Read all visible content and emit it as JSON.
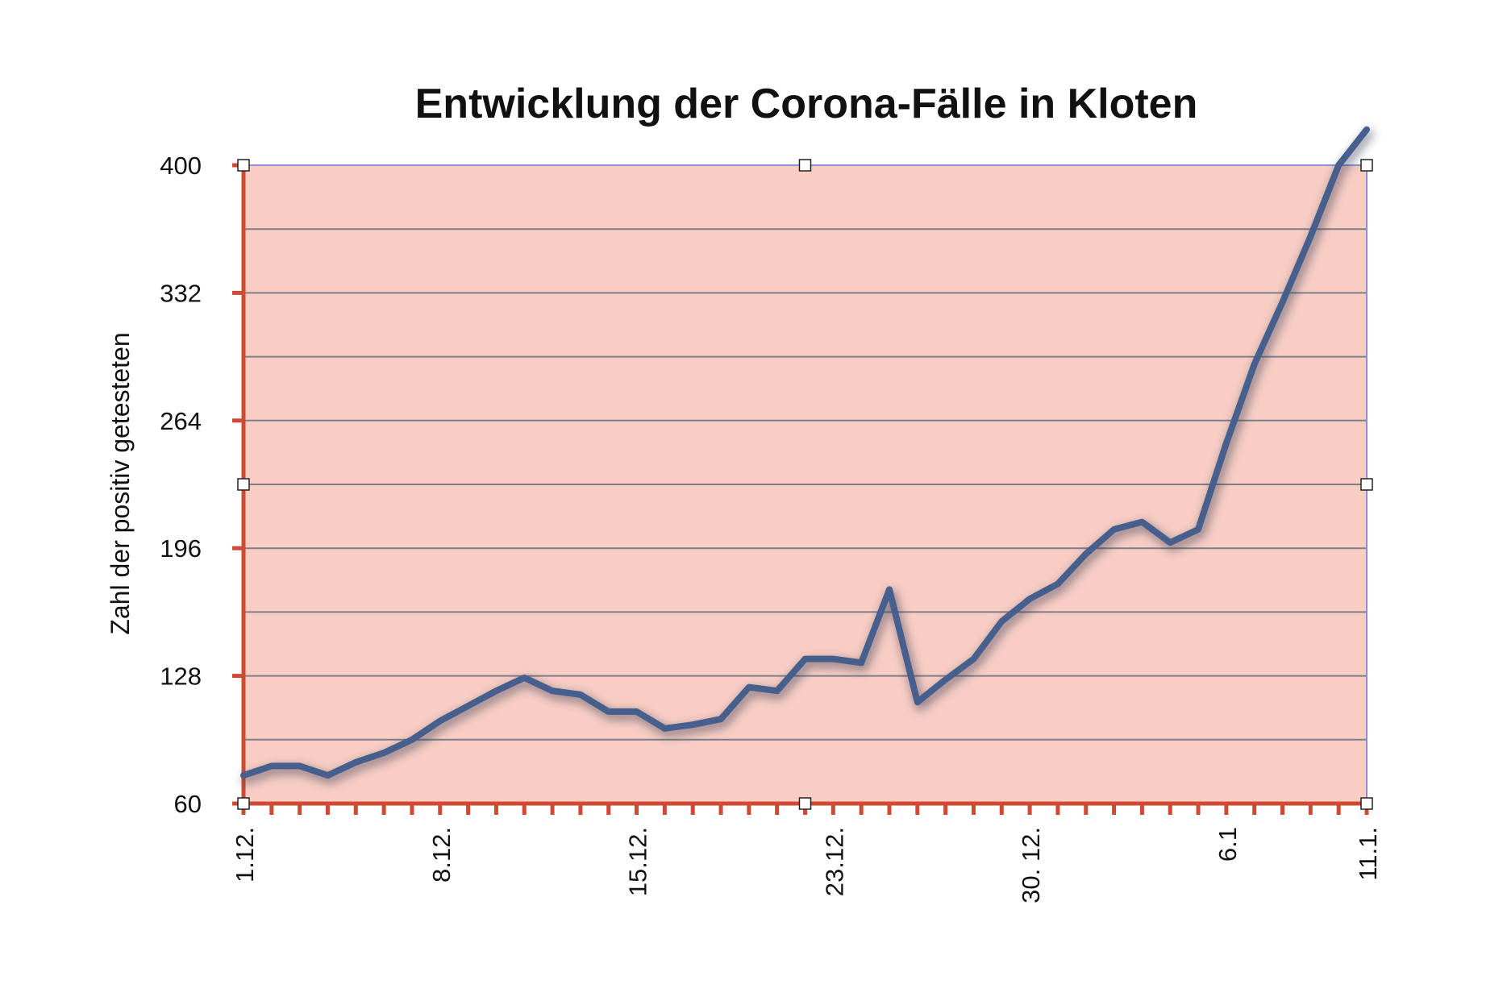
{
  "colors": {
    "plot_background": "#f8cdc3",
    "gridline": "#7f7f8a",
    "axis": "#d04a33",
    "series_line": "#465f8c",
    "series_shadow": "#2a3550",
    "plot_border": "#8a8fd8",
    "handle_fill": "#ffffff",
    "handle_stroke": "#222222"
  },
  "chart_data": {
    "type": "line",
    "title": "Entwicklung der Corona-Fälle in Kloten",
    "xlabel": "",
    "ylabel": "Zahl der positiv getesteten",
    "ylim": [
      60,
      400
    ],
    "yticks": [
      60,
      128,
      196,
      264,
      332,
      400
    ],
    "grid": true,
    "legend": "none",
    "x_tick_labels": [
      {
        "index": 0,
        "label": "1.12."
      },
      {
        "index": 7,
        "label": "8.12."
      },
      {
        "index": 14,
        "label": "15.12."
      },
      {
        "index": 21,
        "label": "23.12."
      },
      {
        "index": 28,
        "label": "30. 12."
      },
      {
        "index": 35,
        "label": "6.1"
      },
      {
        "index": 40,
        "label": "11.1."
      }
    ],
    "series": [
      {
        "values": [
          75,
          80,
          80,
          75,
          82,
          87,
          94,
          104,
          112,
          120,
          127,
          120,
          118,
          109,
          109,
          100,
          102,
          105,
          122,
          120,
          137,
          137,
          135,
          174,
          114,
          126,
          137,
          157,
          169,
          177,
          193,
          206,
          210,
          199,
          206,
          252,
          294,
          327,
          362,
          400,
          419
        ]
      }
    ]
  }
}
